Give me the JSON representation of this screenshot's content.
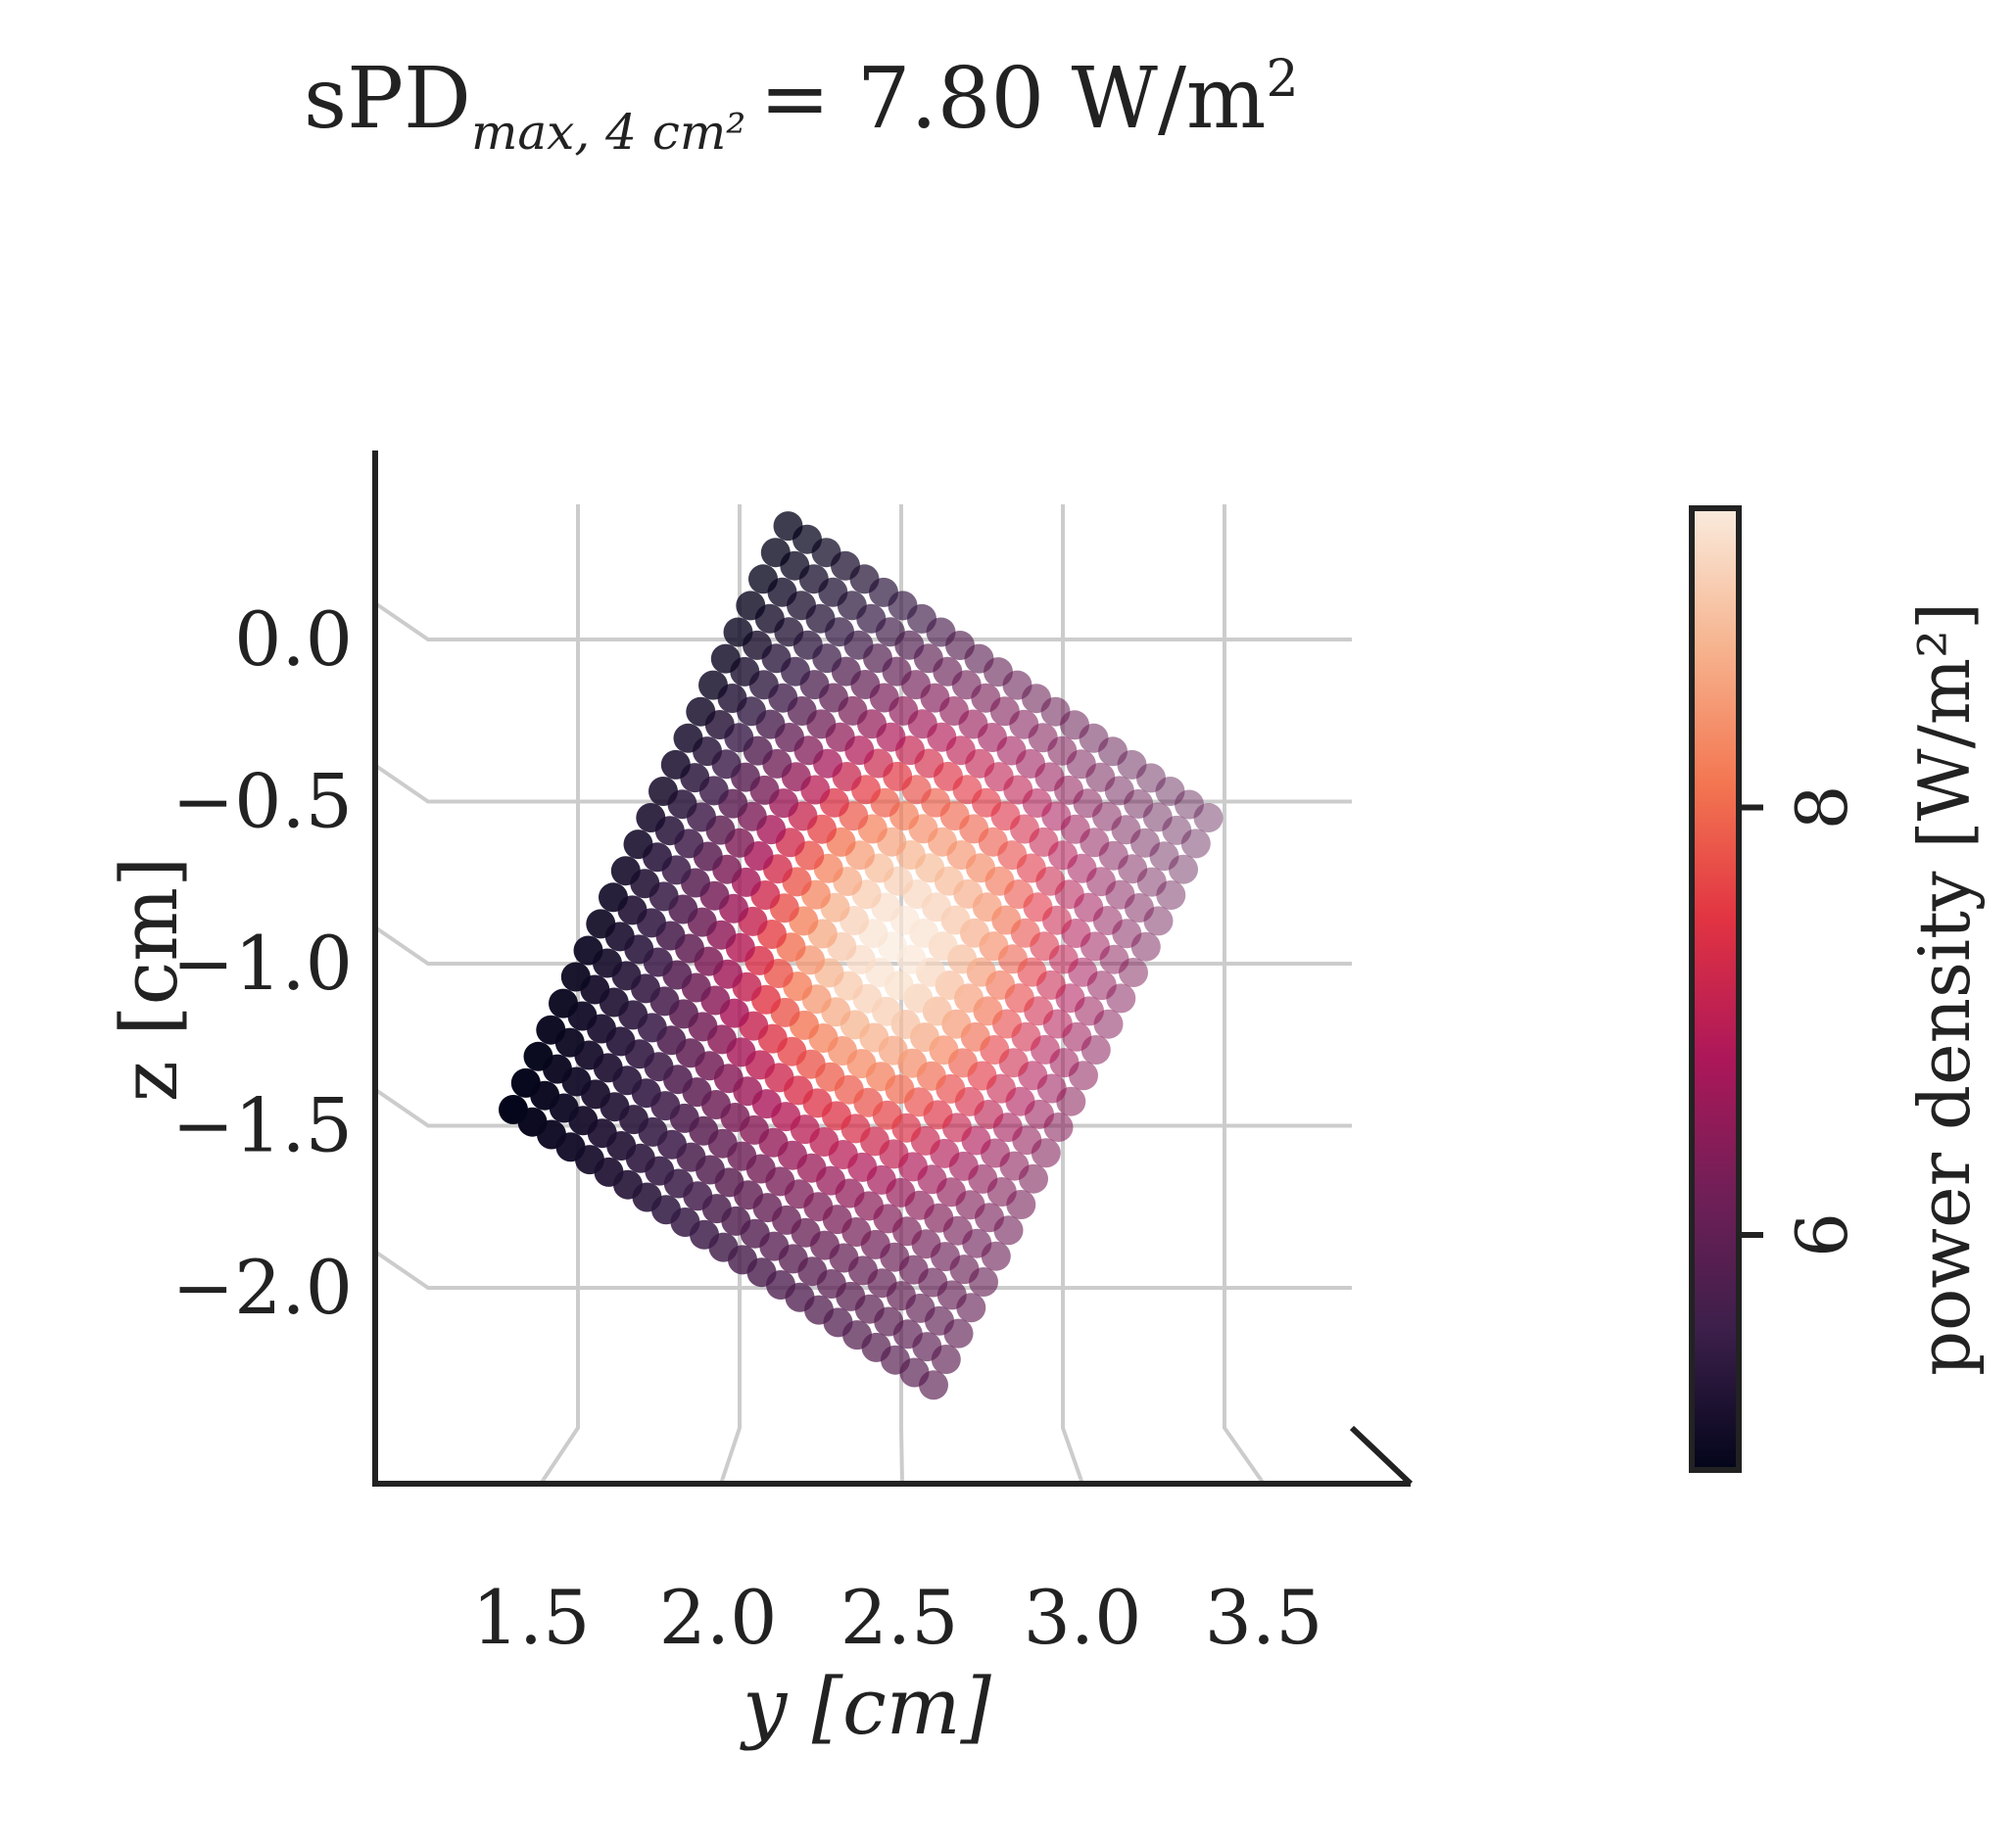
{
  "chart_data": {
    "type": "scatter",
    "projection": "3d-scatter viewed along the x-axis",
    "title": {
      "prefix": "sPD",
      "subscript": "max, 4 cm²",
      "suffix": "= 7.80 W/m",
      "superscript": "2"
    },
    "xlabel": "y [cm]",
    "ylabel": "z [cm]",
    "x_ticks": [
      "1.5",
      "2.0",
      "2.5",
      "3.0",
      "3.5"
    ],
    "y_ticks": [
      "0.0",
      "−0.5",
      "−1.0",
      "−1.5",
      "−2.0"
    ],
    "xlim": [
      1.5,
      3.5
    ],
    "ylim": [
      0.0,
      -2.0
    ],
    "grid": true,
    "colormap": "rocket",
    "colorbar": {
      "label": "power density [W/m²]",
      "ticks": [
        "6",
        "8"
      ],
      "range": [
        4.9,
        9.4
      ],
      "placement": "right"
    },
    "grid_points_per_side": 23,
    "square_corners": {
      "top": [
        2.15,
        0.35
      ],
      "right": [
        3.45,
        -0.55
      ],
      "bottom": [
        2.6,
        -2.3
      ],
      "left": [
        1.3,
        -1.45
      ]
    },
    "peak": {
      "y": 2.6,
      "z": -1.0,
      "value": 9.4
    },
    "corner_values": {
      "top": 4.9,
      "right": 5.9,
      "bottom": 5.9,
      "left": 4.9
    },
    "colors": {
      "axis": "#222222",
      "grid": "#cccccc",
      "colormap_stops": [
        "#03051a",
        "#3b1f4a",
        "#701f57",
        "#ad1759",
        "#e13342",
        "#f37651",
        "#f6b48f",
        "#faebdd"
      ]
    }
  }
}
